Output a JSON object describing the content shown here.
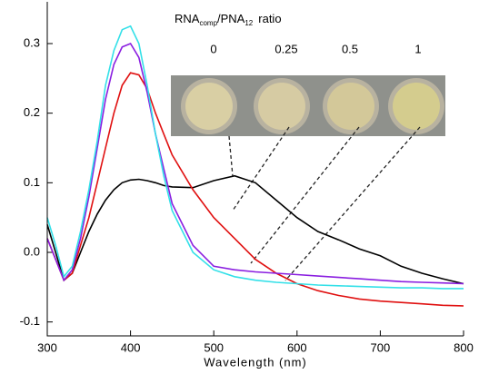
{
  "chart_data": {
    "type": "line",
    "x_label": "Wavelength (nm)",
    "inset_title": [
      "RNA",
      "comp",
      "/PNA",
      "12",
      "ratio"
    ],
    "x": [
      300,
      310,
      320,
      330,
      340,
      350,
      360,
      370,
      380,
      390,
      400,
      410,
      420,
      430,
      440,
      450,
      475,
      500,
      525,
      550,
      575,
      600,
      625,
      650,
      675,
      700,
      725,
      750,
      775,
      800
    ],
    "series": [
      {
        "name": "0",
        "color": "#000000",
        "values": [
          0.04,
          0.0,
          -0.04,
          -0.03,
          0.0,
          0.03,
          0.055,
          0.075,
          0.09,
          0.1,
          0.104,
          0.105,
          0.103,
          0.1,
          0.096,
          0.094,
          0.093,
          0.103,
          0.11,
          0.1,
          0.075,
          0.05,
          0.03,
          0.018,
          0.005,
          -0.005,
          -0.02,
          -0.03,
          -0.038,
          -0.045
        ]
      },
      {
        "name": "0.25",
        "color": "#e01010",
        "values": [
          0.02,
          -0.01,
          -0.04,
          -0.03,
          0.01,
          0.05,
          0.1,
          0.15,
          0.2,
          0.24,
          0.258,
          0.255,
          0.235,
          0.2,
          0.17,
          0.14,
          0.09,
          0.05,
          0.02,
          -0.01,
          -0.03,
          -0.045,
          -0.055,
          -0.062,
          -0.067,
          -0.07,
          -0.072,
          -0.074,
          -0.076,
          -0.077
        ]
      },
      {
        "name": "0.5",
        "color": "#8a1ee0",
        "values": [
          0.02,
          -0.01,
          -0.04,
          -0.025,
          0.02,
          0.08,
          0.15,
          0.22,
          0.27,
          0.295,
          0.3,
          0.28,
          0.23,
          0.17,
          0.12,
          0.07,
          0.01,
          -0.02,
          -0.025,
          -0.028,
          -0.03,
          -0.032,
          -0.034,
          -0.036,
          -0.038,
          -0.04,
          -0.042,
          -0.043,
          -0.044,
          -0.045
        ]
      },
      {
        "name": "1",
        "color": "#33e0e8",
        "values": [
          0.05,
          0.01,
          -0.035,
          -0.02,
          0.03,
          0.09,
          0.16,
          0.24,
          0.29,
          0.32,
          0.325,
          0.3,
          0.24,
          0.17,
          0.11,
          0.06,
          0.0,
          -0.025,
          -0.035,
          -0.04,
          -0.043,
          -0.045,
          -0.047,
          -0.048,
          -0.049,
          -0.05,
          -0.051,
          -0.051,
          -0.052,
          -0.052
        ]
      }
    ],
    "xlim": [
      300,
      800
    ],
    "xticks": [
      300,
      400,
      500,
      600,
      700,
      800
    ],
    "ylim": [
      -0.12,
      0.36
    ],
    "yticks": [
      -0.1,
      {
        "value": 0,
        "label": "0.0"
      },
      0.1,
      0.2,
      0.3
    ]
  }
}
